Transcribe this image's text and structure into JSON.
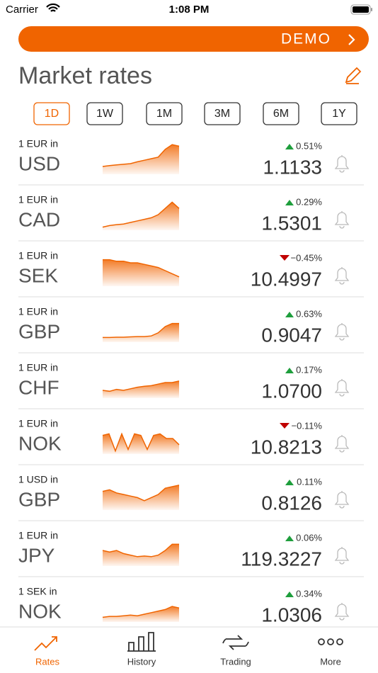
{
  "status_bar": {
    "carrier": "Carrier",
    "time": "1:08 PM"
  },
  "banner": {
    "label": "DEMO"
  },
  "header": {
    "title": "Market rates"
  },
  "periods": [
    {
      "label": "1D",
      "active": true
    },
    {
      "label": "1W",
      "active": false
    },
    {
      "label": "1M",
      "active": false
    },
    {
      "label": "3M",
      "active": false
    },
    {
      "label": "6M",
      "active": false
    },
    {
      "label": "1Y",
      "active": false
    }
  ],
  "rates": [
    {
      "base": "1 EUR in",
      "currency": "USD",
      "direction": "up",
      "change": "0.51%",
      "rate": "1.1133"
    },
    {
      "base": "1 EUR in",
      "currency": "CAD",
      "direction": "up",
      "change": "0.29%",
      "rate": "1.5301"
    },
    {
      "base": "1 EUR in",
      "currency": "SEK",
      "direction": "down",
      "change": "−0.45%",
      "rate": "10.4997"
    },
    {
      "base": "1 EUR in",
      "currency": "GBP",
      "direction": "up",
      "change": "0.63%",
      "rate": "0.9047"
    },
    {
      "base": "1 EUR in",
      "currency": "CHF",
      "direction": "up",
      "change": "0.17%",
      "rate": "1.0700"
    },
    {
      "base": "1 EUR in",
      "currency": "NOK",
      "direction": "down",
      "change": "−0.11%",
      "rate": "10.8213"
    },
    {
      "base": "1 USD in",
      "currency": "GBP",
      "direction": "up",
      "change": "0.11%",
      "rate": "0.8126"
    },
    {
      "base": "1 EUR in",
      "currency": "JPY",
      "direction": "up",
      "change": "0.06%",
      "rate": "119.3227"
    },
    {
      "base": "1 SEK in",
      "currency": "NOK",
      "direction": "up",
      "change": "0.34%",
      "rate": "1.0306"
    }
  ],
  "tabs": [
    {
      "label": "Rates",
      "active": true
    },
    {
      "label": "History",
      "active": false
    },
    {
      "label": "Trading",
      "active": false
    },
    {
      "label": "More",
      "active": false
    }
  ]
}
